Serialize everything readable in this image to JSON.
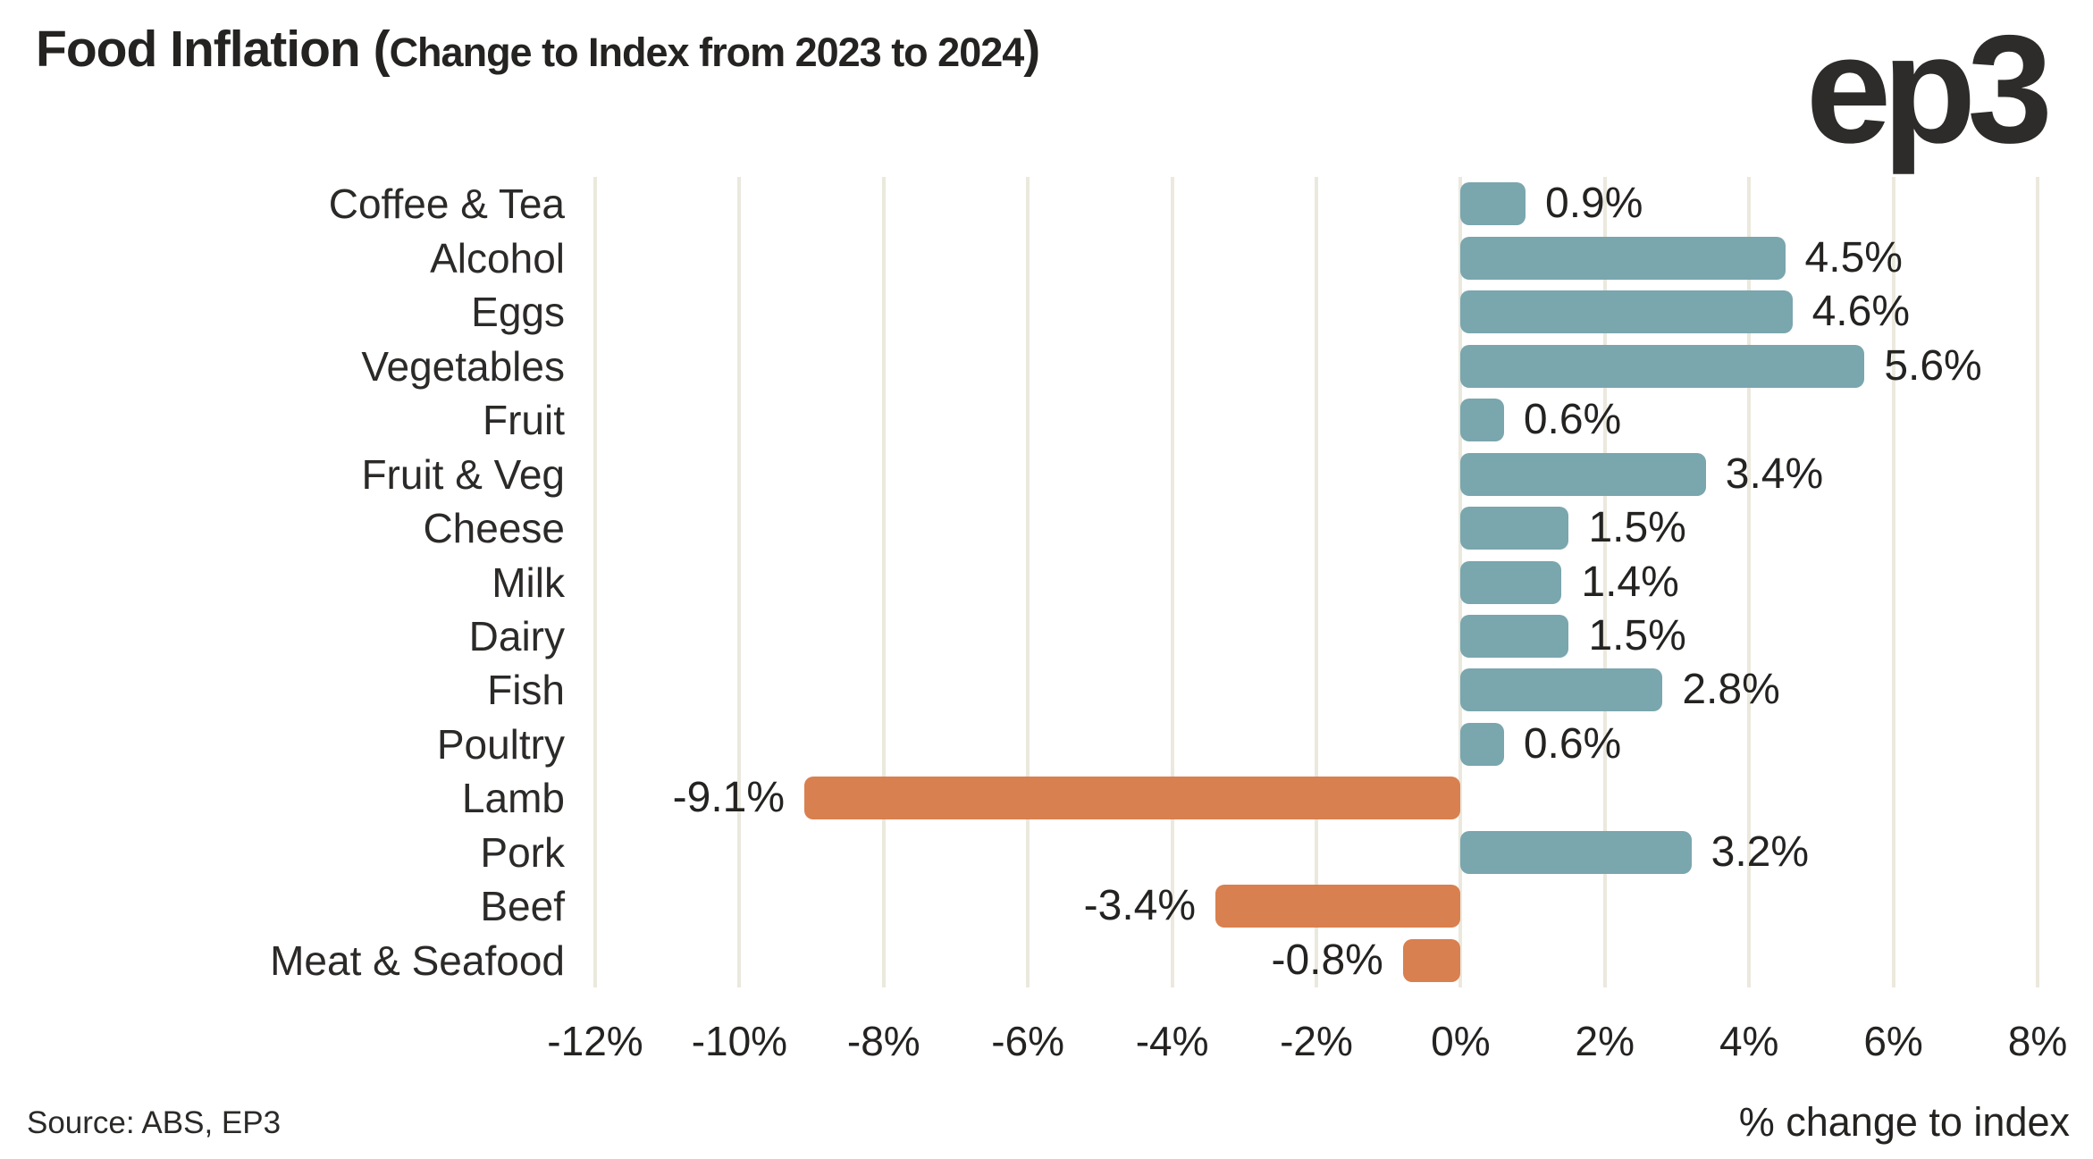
{
  "header": {
    "title": "Food Inflation ",
    "paren_open": "(",
    "subtitle": "Change to Index from 2023 to 2024",
    "paren_close": ")",
    "logo_text": "ep3"
  },
  "footer": {
    "source": "Source: ABS, EP3",
    "axis_title": "% change to index"
  },
  "colors": {
    "positive_bar": "#7aa6ae",
    "negative_bar": "#d8804f",
    "text": "#2b2a28",
    "gridline": "#ebe8dd"
  },
  "chart_data": {
    "type": "bar",
    "orientation": "horizontal",
    "title": "Food Inflation (Change to Index from 2023 to 2024)",
    "xlabel": "% change to index",
    "ylabel": "",
    "categories": [
      "Coffee & Tea",
      "Alcohol",
      "Eggs",
      "Vegetables",
      "Fruit",
      "Fruit & Veg",
      "Cheese",
      "Milk",
      "Dairy",
      "Fish",
      "Poultry",
      "Lamb",
      "Pork",
      "Beef",
      "Meat & Seafood"
    ],
    "values": [
      0.9,
      4.5,
      4.6,
      5.6,
      0.6,
      3.4,
      1.5,
      1.4,
      1.5,
      2.8,
      0.6,
      -9.1,
      3.2,
      -3.4,
      -0.8
    ],
    "data_labels": [
      "0.9%",
      "4.5%",
      "4.6%",
      "5.6%",
      "0.6%",
      "3.4%",
      "1.5%",
      "1.4%",
      "1.5%",
      "2.8%",
      "0.6%",
      "-9.1%",
      "3.2%",
      "-3.4%",
      "-0.8%"
    ],
    "x_tick_labels": [
      "-12%",
      "-10%",
      "-8%",
      "-6%",
      "-4%",
      "-2%",
      "0%",
      "2%",
      "4%",
      "6%",
      "8%"
    ],
    "x_tick_values": [
      -12,
      -10,
      -8,
      -6,
      -4,
      -2,
      0,
      2,
      4,
      6,
      8
    ],
    "xlim": [
      -12,
      8
    ],
    "grid": "vertical",
    "legend": false,
    "source": "Source: ABS, EP3"
  }
}
